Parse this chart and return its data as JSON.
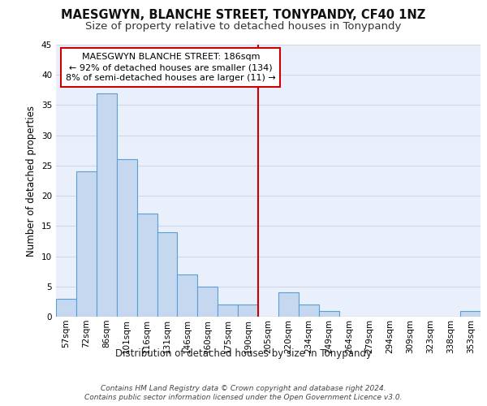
{
  "title": "MAESGWYN, BLANCHE STREET, TONYPANDY, CF40 1NZ",
  "subtitle": "Size of property relative to detached houses in Tonypandy",
  "xlabel": "Distribution of detached houses by size in Tonypandy",
  "ylabel": "Number of detached properties",
  "categories": [
    "57sqm",
    "72sqm",
    "86sqm",
    "101sqm",
    "116sqm",
    "131sqm",
    "146sqm",
    "160sqm",
    "175sqm",
    "190sqm",
    "205sqm",
    "220sqm",
    "234sqm",
    "249sqm",
    "264sqm",
    "279sqm",
    "294sqm",
    "309sqm",
    "323sqm",
    "338sqm",
    "353sqm"
  ],
  "values": [
    3,
    24,
    37,
    26,
    17,
    14,
    7,
    5,
    2,
    2,
    0,
    4,
    2,
    1,
    0,
    0,
    0,
    0,
    0,
    0,
    1
  ],
  "bar_color": "#c5d8f0",
  "bar_edge_color": "#5a9fd4",
  "vline_x": 9.5,
  "vline_color": "#cc0000",
  "annotation_text": "MAESGWYN BLANCHE STREET: 186sqm\n← 92% of detached houses are smaller (134)\n8% of semi-detached houses are larger (11) →",
  "ylim": [
    0,
    45
  ],
  "yticks": [
    0,
    5,
    10,
    15,
    20,
    25,
    30,
    35,
    40,
    45
  ],
  "grid_color": "#d0d8e8",
  "background_color": "#eaf0fb",
  "footer_line1": "Contains HM Land Registry data © Crown copyright and database right 2024.",
  "footer_line2": "Contains public sector information licensed under the Open Government Licence v3.0.",
  "title_fontsize": 10.5,
  "subtitle_fontsize": 9.5,
  "xlabel_fontsize": 8.5,
  "ylabel_fontsize": 8.5,
  "tick_fontsize": 7.5,
  "annotation_fontsize": 8,
  "footer_fontsize": 6.5
}
